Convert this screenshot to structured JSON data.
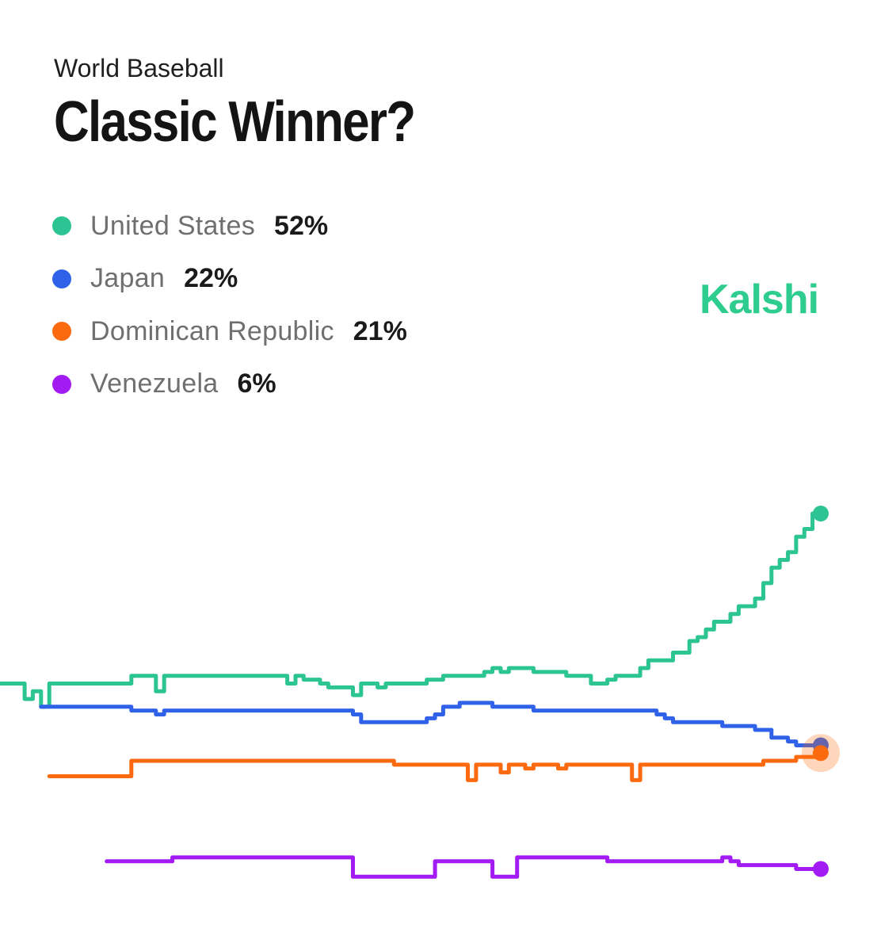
{
  "header": {
    "subtitle": "World Baseball",
    "title": "Classic Winner?"
  },
  "brand": "Kalshi",
  "legend": [
    {
      "name": "United States",
      "value": "52%",
      "color": "#2cc492"
    },
    {
      "name": "Japan",
      "value": "22%",
      "color": "#2f62e8"
    },
    {
      "name": "Dominican Republic",
      "value": "21%",
      "color": "#fb6a0f"
    },
    {
      "name": "Venezuela",
      "value": "6%",
      "color": "#a21bf2"
    }
  ],
  "chart_data": {
    "type": "line",
    "title": "Classic Winner?",
    "subtitle": "World Baseball",
    "xlabel": "",
    "ylabel": "",
    "ylim": [
      0,
      60
    ],
    "grid": false,
    "legend_position": "top-left",
    "series": [
      {
        "name": "United States",
        "color": "#2cc492",
        "final": 52,
        "x": [
          0,
          1,
          2,
          3,
          4,
          5,
          6,
          7,
          8,
          9,
          10,
          11,
          12,
          13,
          14,
          15,
          16,
          17,
          18,
          19,
          20,
          21,
          22,
          23,
          24,
          25,
          26,
          27,
          28,
          29,
          30,
          31,
          32,
          33,
          34,
          35,
          36,
          37,
          38,
          39,
          40,
          41,
          42,
          43,
          44,
          45,
          46,
          47,
          48,
          49,
          50,
          51,
          52,
          53,
          54,
          55,
          56,
          57,
          58,
          59,
          60,
          61,
          62,
          63,
          64,
          65,
          66,
          67,
          68,
          69,
          70,
          71,
          72,
          73,
          74,
          75,
          76,
          77,
          78,
          79,
          80,
          81,
          82,
          83,
          84,
          85,
          86,
          87,
          88,
          89,
          90,
          91,
          92,
          93,
          94,
          95,
          96,
          97,
          98,
          99,
          100
        ],
        "values": [
          30.0,
          30.0,
          30.0,
          28.0,
          29.0,
          27.0,
          30.0,
          30.0,
          30.0,
          30.0,
          30.0,
          30.0,
          30.0,
          30.0,
          30.0,
          30.0,
          31.0,
          31.0,
          31.0,
          29.0,
          31.0,
          31.0,
          31.0,
          31.0,
          31.0,
          31.0,
          31.0,
          31.0,
          31.0,
          31.0,
          31.0,
          31.0,
          31.0,
          31.0,
          31.0,
          30.0,
          31.0,
          30.5,
          30.5,
          30.0,
          29.5,
          29.5,
          29.5,
          28.5,
          30.0,
          30.0,
          29.5,
          30.0,
          30.0,
          30.0,
          30.0,
          30.0,
          30.5,
          30.5,
          31.0,
          31.0,
          31.0,
          31.0,
          31.0,
          31.5,
          32.0,
          31.5,
          32.0,
          32.0,
          32.0,
          31.5,
          31.5,
          31.5,
          31.5,
          31.0,
          31.0,
          31.0,
          30.0,
          30.0,
          30.5,
          31.0,
          31.0,
          31.0,
          32.0,
          33.0,
          33.0,
          33.0,
          34.0,
          34.0,
          35.5,
          36.0,
          37.0,
          38.0,
          38.0,
          39.0,
          40.0,
          40.0,
          41.0,
          43.0,
          45.0,
          46.0,
          47.0,
          49.0,
          50.0,
          52.0,
          52.0
        ]
      },
      {
        "name": "Japan",
        "color": "#2f62e8",
        "final": 22,
        "x": [
          0,
          1,
          2,
          3,
          4,
          5,
          6,
          7,
          8,
          9,
          10,
          11,
          12,
          13,
          14,
          15,
          16,
          17,
          18,
          19,
          20,
          21,
          22,
          23,
          24,
          25,
          26,
          27,
          28,
          29,
          30,
          31,
          32,
          33,
          34,
          35,
          36,
          37,
          38,
          39,
          40,
          41,
          42,
          43,
          44,
          45,
          46,
          47,
          48,
          49,
          50,
          51,
          52,
          53,
          54,
          55,
          56,
          57,
          58,
          59,
          60,
          61,
          62,
          63,
          64,
          65,
          66,
          67,
          68,
          69,
          70,
          71,
          72,
          73,
          74,
          75,
          76,
          77,
          78,
          79,
          80,
          81,
          82,
          83,
          84,
          85,
          86,
          87,
          88,
          89,
          90,
          91,
          92,
          93,
          94,
          95,
          96,
          97,
          98,
          99,
          100
        ],
        "values": [
          null,
          null,
          null,
          null,
          null,
          27.0,
          27.0,
          27.0,
          27.0,
          27.0,
          27.0,
          27.0,
          27.0,
          27.0,
          27.0,
          27.0,
          26.5,
          26.5,
          26.5,
          26.0,
          26.5,
          26.5,
          26.5,
          26.5,
          26.5,
          26.5,
          26.5,
          26.5,
          26.5,
          26.5,
          26.5,
          26.5,
          26.5,
          26.5,
          26.5,
          26.5,
          26.5,
          26.5,
          26.5,
          26.5,
          26.5,
          26.5,
          26.5,
          26.0,
          25.0,
          25.0,
          25.0,
          25.0,
          25.0,
          25.0,
          25.0,
          25.0,
          25.5,
          26.0,
          27.0,
          27.0,
          27.5,
          27.5,
          27.5,
          27.5,
          27.0,
          27.0,
          27.0,
          27.0,
          27.0,
          26.5,
          26.5,
          26.5,
          26.5,
          26.5,
          26.5,
          26.5,
          26.5,
          26.5,
          26.5,
          26.5,
          26.5,
          26.5,
          26.5,
          26.5,
          26.0,
          25.5,
          25.0,
          25.0,
          25.0,
          25.0,
          25.0,
          25.0,
          24.5,
          24.5,
          24.5,
          24.5,
          24.0,
          24.0,
          23.0,
          23.0,
          22.5,
          22.0,
          22.0,
          22.0,
          22.0
        ]
      },
      {
        "name": "Dominican Republic",
        "color": "#fb6a0f",
        "final": 21,
        "x": [
          0,
          1,
          2,
          3,
          4,
          5,
          6,
          7,
          8,
          9,
          10,
          11,
          12,
          13,
          14,
          15,
          16,
          17,
          18,
          19,
          20,
          21,
          22,
          23,
          24,
          25,
          26,
          27,
          28,
          29,
          30,
          31,
          32,
          33,
          34,
          35,
          36,
          37,
          38,
          39,
          40,
          41,
          42,
          43,
          44,
          45,
          46,
          47,
          48,
          49,
          50,
          51,
          52,
          53,
          54,
          55,
          56,
          57,
          58,
          59,
          60,
          61,
          62,
          63,
          64,
          65,
          66,
          67,
          68,
          69,
          70,
          71,
          72,
          73,
          74,
          75,
          76,
          77,
          78,
          79,
          80,
          81,
          82,
          83,
          84,
          85,
          86,
          87,
          88,
          89,
          90,
          91,
          92,
          93,
          94,
          95,
          96,
          97,
          98,
          99,
          100
        ],
        "values": [
          null,
          null,
          null,
          null,
          null,
          null,
          18.0,
          18.0,
          18.0,
          18.0,
          18.0,
          18.0,
          18.0,
          18.0,
          18.0,
          18.0,
          20.0,
          20.0,
          20.0,
          20.0,
          20.0,
          20.0,
          20.0,
          20.0,
          20.0,
          20.0,
          20.0,
          20.0,
          20.0,
          20.0,
          20.0,
          20.0,
          20.0,
          20.0,
          20.0,
          20.0,
          20.0,
          20.0,
          20.0,
          20.0,
          20.0,
          20.0,
          20.0,
          20.0,
          20.0,
          20.0,
          20.0,
          20.0,
          19.5,
          19.5,
          19.5,
          19.5,
          19.5,
          19.5,
          19.5,
          19.5,
          19.5,
          17.5,
          19.5,
          19.5,
          19.5,
          18.5,
          19.5,
          19.5,
          19.0,
          19.5,
          19.5,
          19.5,
          19.0,
          19.5,
          19.5,
          19.5,
          19.5,
          19.5,
          19.5,
          19.5,
          19.5,
          17.5,
          19.5,
          19.5,
          19.5,
          19.5,
          19.5,
          19.5,
          19.5,
          19.5,
          19.5,
          19.5,
          19.5,
          19.5,
          19.5,
          19.5,
          19.5,
          20.0,
          20.0,
          20.0,
          20.0,
          20.5,
          20.5,
          20.5,
          21.0
        ]
      },
      {
        "name": "Venezuela",
        "color": "#a21bf2",
        "final": 6,
        "x": [
          0,
          1,
          2,
          3,
          4,
          5,
          6,
          7,
          8,
          9,
          10,
          11,
          12,
          13,
          14,
          15,
          16,
          17,
          18,
          19,
          20,
          21,
          22,
          23,
          24,
          25,
          26,
          27,
          28,
          29,
          30,
          31,
          32,
          33,
          34,
          35,
          36,
          37,
          38,
          39,
          40,
          41,
          42,
          43,
          44,
          45,
          46,
          47,
          48,
          49,
          50,
          51,
          52,
          53,
          54,
          55,
          56,
          57,
          58,
          59,
          60,
          61,
          62,
          63,
          64,
          65,
          66,
          67,
          68,
          69,
          70,
          71,
          72,
          73,
          74,
          75,
          76,
          77,
          78,
          79,
          80,
          81,
          82,
          83,
          84,
          85,
          86,
          87,
          88,
          89,
          90,
          91,
          92,
          93,
          94,
          95,
          96,
          97,
          98,
          99,
          100
        ],
        "values": [
          null,
          null,
          null,
          null,
          null,
          null,
          null,
          null,
          null,
          null,
          null,
          null,
          null,
          7.0,
          7.0,
          7.0,
          7.0,
          7.0,
          7.0,
          7.0,
          7.0,
          7.5,
          7.5,
          7.5,
          7.5,
          7.5,
          7.5,
          7.5,
          7.5,
          7.5,
          7.5,
          7.5,
          7.5,
          7.5,
          7.5,
          7.5,
          7.5,
          7.5,
          7.5,
          7.5,
          7.5,
          7.5,
          7.5,
          5.0,
          5.0,
          5.0,
          5.0,
          5.0,
          5.0,
          5.0,
          5.0,
          5.0,
          5.0,
          7.0,
          7.0,
          7.0,
          7.0,
          7.0,
          7.0,
          7.0,
          5.0,
          5.0,
          5.0,
          7.5,
          7.5,
          7.5,
          7.5,
          7.5,
          7.5,
          7.5,
          7.5,
          7.5,
          7.5,
          7.5,
          7.0,
          7.0,
          7.0,
          7.0,
          7.0,
          7.0,
          7.0,
          7.0,
          7.0,
          7.0,
          7.0,
          7.0,
          7.0,
          7.0,
          7.5,
          7.0,
          6.5,
          6.5,
          6.5,
          6.5,
          6.5,
          6.5,
          6.5,
          6.0,
          6.0,
          6.0,
          6.0
        ]
      }
    ]
  }
}
